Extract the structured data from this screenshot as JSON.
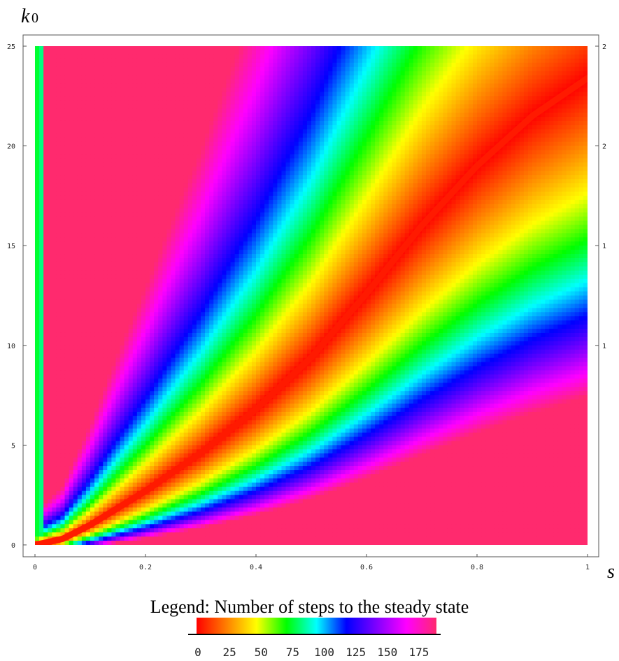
{
  "chart_data": {
    "type": "heatmap",
    "title": "",
    "xlabel": "s",
    "ylabel_main": "k",
    "ylabel_sub": "0",
    "xlim": [
      0,
      1
    ],
    "ylim": [
      0,
      25
    ],
    "x_ticks": [
      "0",
      "0.2",
      "0.4",
      "0.6",
      "0.8",
      "1"
    ],
    "y_ticks": [
      "0",
      "5",
      "10",
      "15",
      "20",
      "25"
    ],
    "right_ticks": [
      "2",
      "2",
      "1",
      "1"
    ],
    "steady_state_curve": [
      {
        "s": 0.05,
        "k0": 0.3
      },
      {
        "s": 0.1,
        "k0": 1.0
      },
      {
        "s": 0.2,
        "k0": 2.7
      },
      {
        "s": 0.3,
        "k0": 4.6
      },
      {
        "s": 0.4,
        "k0": 6.8
      },
      {
        "s": 0.5,
        "k0": 9.4
      },
      {
        "s": 0.6,
        "k0": 12.6
      },
      {
        "s": 0.7,
        "k0": 16.0
      },
      {
        "s": 0.8,
        "k0": 19.0
      },
      {
        "s": 0.9,
        "k0": 21.5
      },
      {
        "s": 1.0,
        "k0": 23.4
      }
    ],
    "legend": {
      "title": "Legend: Number of steps to the steady state",
      "ticks": [
        "0",
        "25",
        "50",
        "75",
        "100",
        "125",
        "150",
        "175"
      ],
      "range": [
        0,
        190
      ]
    },
    "colormap": [
      "#ff0000",
      "#ff7f00",
      "#ffff00",
      "#00ff00",
      "#00ffff",
      "#0000ff",
      "#7f00ff",
      "#ff00ff",
      "#ff2a6e"
    ]
  }
}
